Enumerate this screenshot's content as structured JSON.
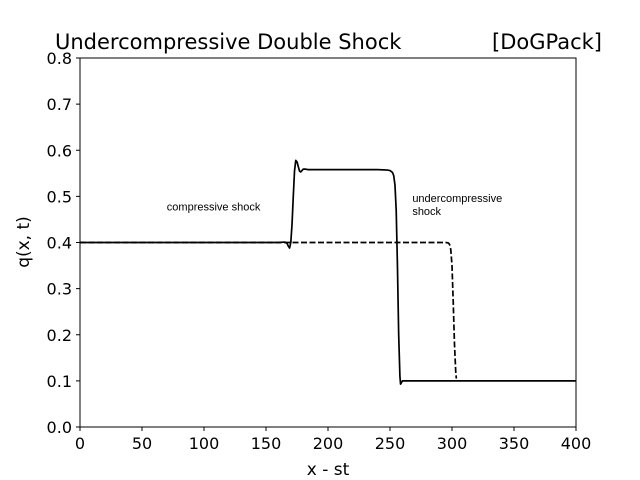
{
  "chart_data": {
    "type": "line",
    "title": "Undercompressive Double Shock",
    "title_right": "[DoGPack]",
    "xlabel": "x - st",
    "ylabel": "q(x, t)",
    "xlim": [
      0,
      400
    ],
    "ylim": [
      0,
      0.8
    ],
    "xticks": [
      0,
      50,
      100,
      150,
      200,
      250,
      300,
      350,
      400
    ],
    "xtick_labels": [
      "0",
      "50",
      "100",
      "150",
      "200",
      "250",
      "300",
      "350",
      "400"
    ],
    "yticks": [
      0,
      0.1,
      0.2,
      0.3,
      0.4,
      0.5,
      0.6,
      0.7,
      0.8
    ],
    "ytick_labels": [
      "0.0",
      "0.1",
      "0.2",
      "0.3",
      "0.4",
      "0.5",
      "0.6",
      "0.7",
      "0.8"
    ],
    "grid": false,
    "legend": "none",
    "series": [
      {
        "style": "solid",
        "color": "#000000",
        "x": [
          0,
          160,
          165,
          167,
          168,
          169,
          170,
          171,
          172,
          173,
          174,
          175,
          176,
          177,
          178,
          179,
          180,
          182,
          184,
          186,
          190,
          200,
          220,
          240,
          248,
          250,
          252,
          253,
          254,
          255,
          256,
          257,
          258,
          258.5,
          259,
          260,
          262,
          270,
          300,
          350,
          400
        ],
        "y": [
          0.4,
          0.4,
          0.401,
          0.398,
          0.392,
          0.388,
          0.4,
          0.44,
          0.5,
          0.555,
          0.578,
          0.575,
          0.565,
          0.555,
          0.553,
          0.556,
          0.559,
          0.559,
          0.558,
          0.558,
          0.558,
          0.558,
          0.558,
          0.558,
          0.557,
          0.556,
          0.552,
          0.545,
          0.525,
          0.47,
          0.35,
          0.2,
          0.11,
          0.093,
          0.095,
          0.1,
          0.1,
          0.1,
          0.1,
          0.1,
          0.1
        ]
      },
      {
        "style": "dashed",
        "color": "#000000",
        "x": [
          0,
          100,
          200,
          290,
          295,
          297,
          298,
          299,
          300,
          301,
          302,
          303,
          303.5
        ],
        "y": [
          0.4,
          0.4,
          0.4,
          0.4,
          0.4,
          0.399,
          0.396,
          0.385,
          0.35,
          0.27,
          0.18,
          0.12,
          0.105
        ]
      }
    ],
    "annotations": [
      {
        "lines": [
          "compressive shock"
        ],
        "x": 70,
        "y": 0.469
      },
      {
        "lines": [
          "undercompressive",
          "shock"
        ],
        "x": 268,
        "y": 0.488
      }
    ]
  }
}
